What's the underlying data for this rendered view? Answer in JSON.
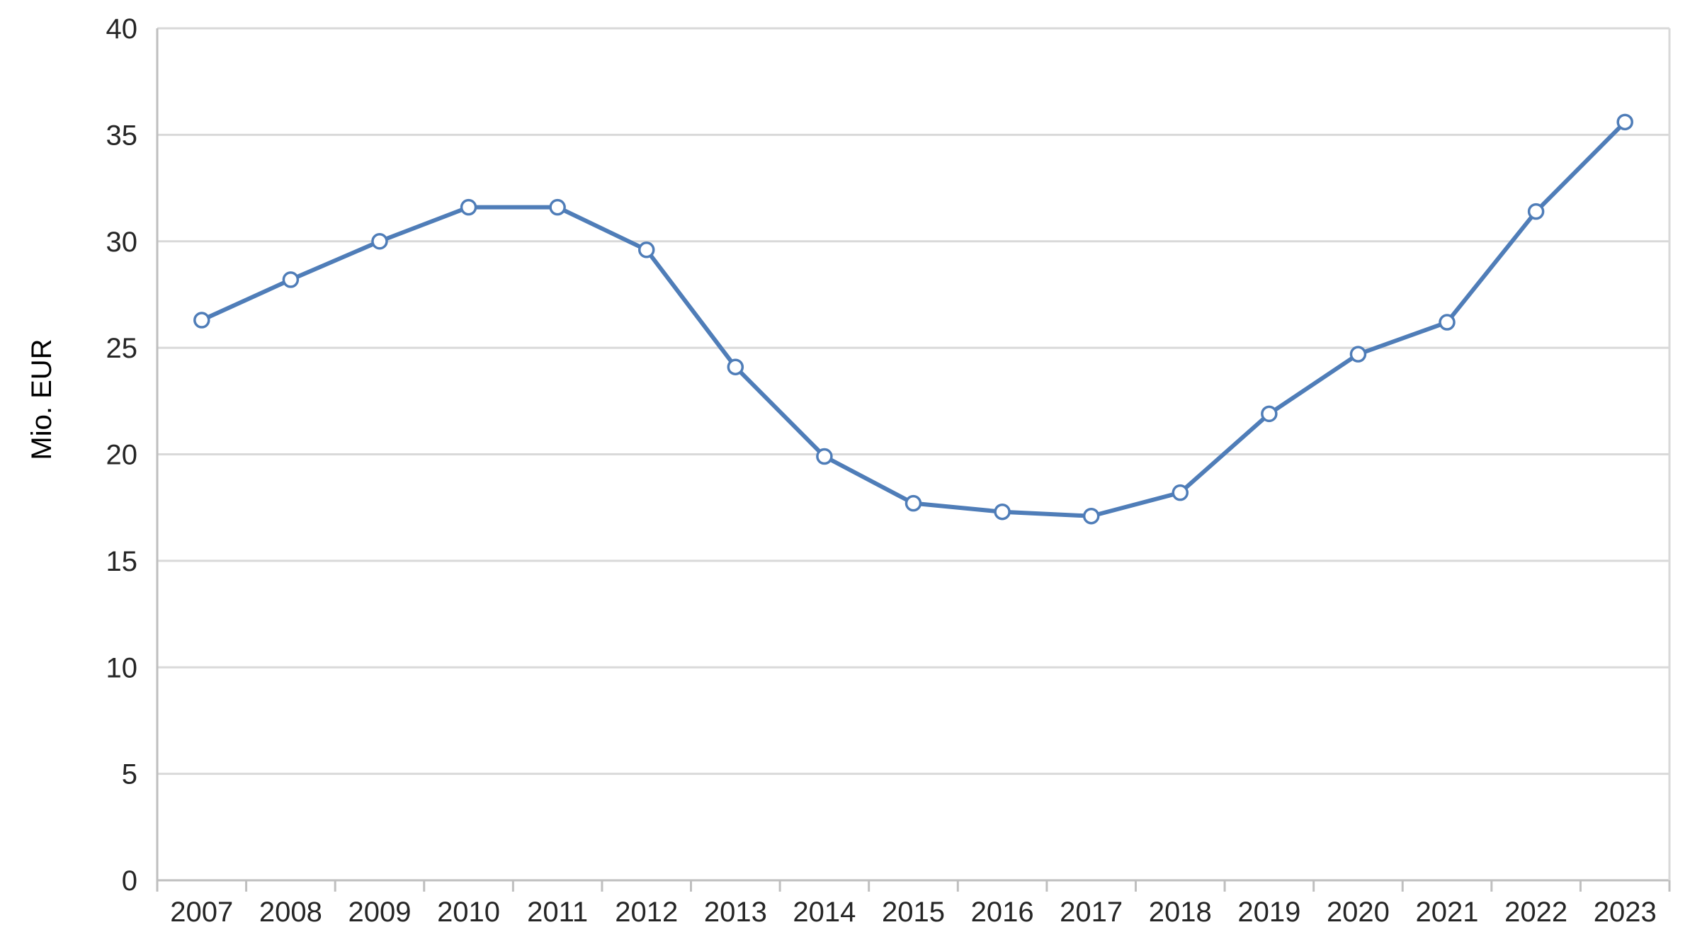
{
  "chart_data": {
    "type": "line",
    "categories": [
      "2007",
      "2008",
      "2009",
      "2010",
      "2011",
      "2012",
      "2013",
      "2014",
      "2015",
      "2016",
      "2017",
      "2018",
      "2019",
      "2020",
      "2021",
      "2022",
      "2023"
    ],
    "series": [
      {
        "values": [
          26.3,
          28.2,
          30.0,
          31.6,
          31.6,
          29.6,
          24.1,
          19.9,
          17.7,
          17.3,
          17.1,
          18.2,
          21.9,
          24.7,
          26.2,
          31.4,
          35.6
        ],
        "color": "#4f7db8"
      }
    ],
    "ylabel": "Mio. EUR",
    "xlabel": "",
    "ylim": [
      0,
      40
    ],
    "yticks": [
      "0",
      "5",
      "10",
      "15",
      "20",
      "25",
      "30",
      "35",
      "40"
    ],
    "grid": true,
    "legend": "none"
  }
}
